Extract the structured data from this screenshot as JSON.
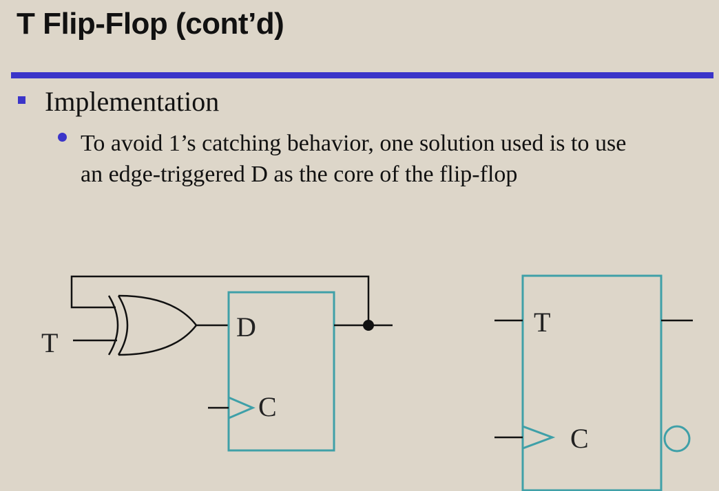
{
  "slide": {
    "title": "T Flip-Flop (cont’d)",
    "bullet_level1": "Implementation",
    "bullet_level2_line1": "To avoid 1’s catching behavior, one solution used is to use",
    "bullet_level2_line2": "an edge-triggered D as the core of the flip-flop"
  },
  "diagram": {
    "left_input_label": "T",
    "d_input_label": "D",
    "d_clock_label": "C",
    "symbol_t_label": "T",
    "symbol_clock_label": "C"
  },
  "colors": {
    "accent": "#3b35c9",
    "box": "#3fa0a8",
    "wire": "#111111",
    "background": "#ddd6c9"
  }
}
